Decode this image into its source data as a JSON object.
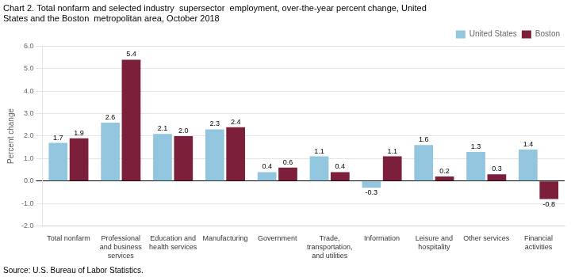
{
  "chart_data": {
    "type": "bar",
    "title": [
      "Chart 2. Total nonfarm and selected industry  supersector  employment, over-the-year percent change, United",
      "States and the Boston  metropolitan area, October 2018"
    ],
    "ylabel": "Percent change",
    "annotations": [
      "Source: U.S. Bureau of Labor Statistics."
    ],
    "categories": [
      "Total nonfarm",
      "Professional\nand business\nservices",
      "Education and\nhealth services",
      "Manufacturing",
      "Government",
      "Trade,\ntransportation,\nand utilities",
      "Information",
      "Leisure and\nhospitality",
      "Other services",
      "Financial\nactivities"
    ],
    "series": [
      {
        "name": "United States",
        "color": "#92C5DE",
        "values": [
          1.7,
          2.6,
          2.1,
          2.3,
          0.4,
          1.1,
          -0.3,
          1.6,
          1.3,
          1.4
        ]
      },
      {
        "name": "Boston",
        "color": "#7B1F3A",
        "values": [
          1.9,
          5.4,
          2.0,
          2.4,
          0.6,
          0.4,
          1.1,
          0.2,
          0.3,
          -0.8
        ],
        "value_labels": [
          "1.9",
          "5.4",
          "2.0",
          "2.4",
          "0.6",
          "0.4",
          "1.1",
          "0.2",
          "0.3",
          "-0.8"
        ]
      }
    ],
    "ylim": [
      -2.0,
      6.0
    ],
    "yticks": [
      {
        "value": -2.0,
        "label": "-2.0"
      },
      {
        "value": -1.0,
        "label": "-1.0"
      },
      {
        "value": 0.0,
        "label": "0.0"
      },
      {
        "value": 1.0,
        "label": "1.0"
      },
      {
        "value": 2.0,
        "label": "2.0"
      },
      {
        "value": 3.0,
        "label": "3.0"
      },
      {
        "value": 4.0,
        "label": "4.0"
      },
      {
        "value": 5.0,
        "label": "5.0"
      },
      {
        "value": 6.0,
        "label": "6.0"
      }
    ],
    "grid": true,
    "legend": "upper right",
    "data_labels": true
  }
}
